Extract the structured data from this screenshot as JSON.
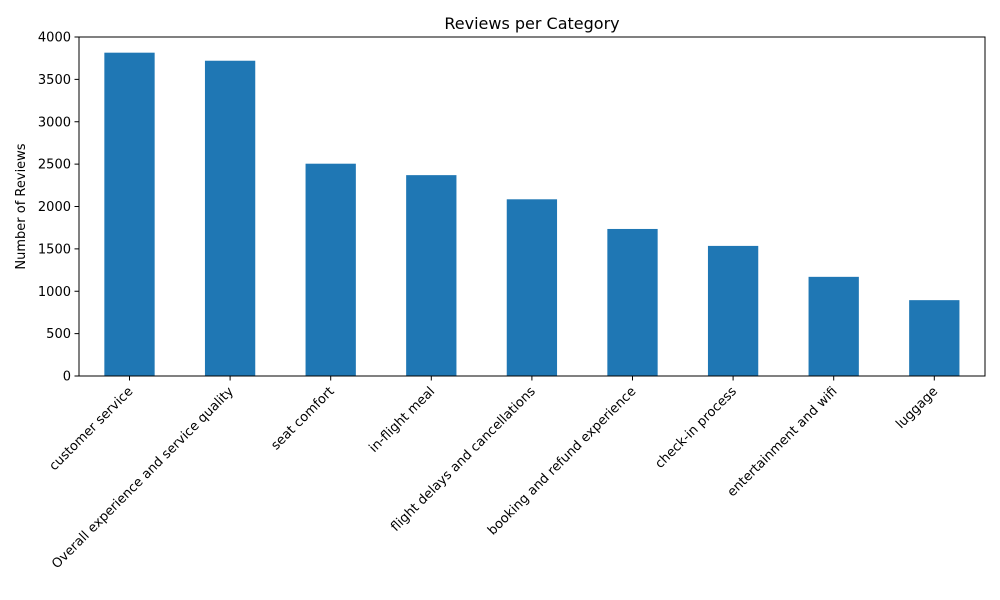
{
  "chart_data": {
    "type": "bar",
    "title": "Reviews per Category",
    "xlabel": "",
    "ylabel": "Number of Reviews",
    "categories": [
      "customer service",
      "Overall experience and service quality",
      "seat comfort",
      "in-flight meal",
      "flight delays and cancellations",
      "booking and refund experience",
      "check-in process",
      "entertainment and wifi",
      "luggage"
    ],
    "values": [
      3815,
      3720,
      2505,
      2370,
      2085,
      1735,
      1535,
      1170,
      895
    ],
    "ylim": [
      0,
      4000
    ],
    "yticks": [
      0,
      500,
      1000,
      1500,
      2000,
      2500,
      3000,
      3500,
      4000
    ],
    "bar_color": "#1f77b4",
    "grid": false,
    "x_tick_rotation_deg": 45
  }
}
